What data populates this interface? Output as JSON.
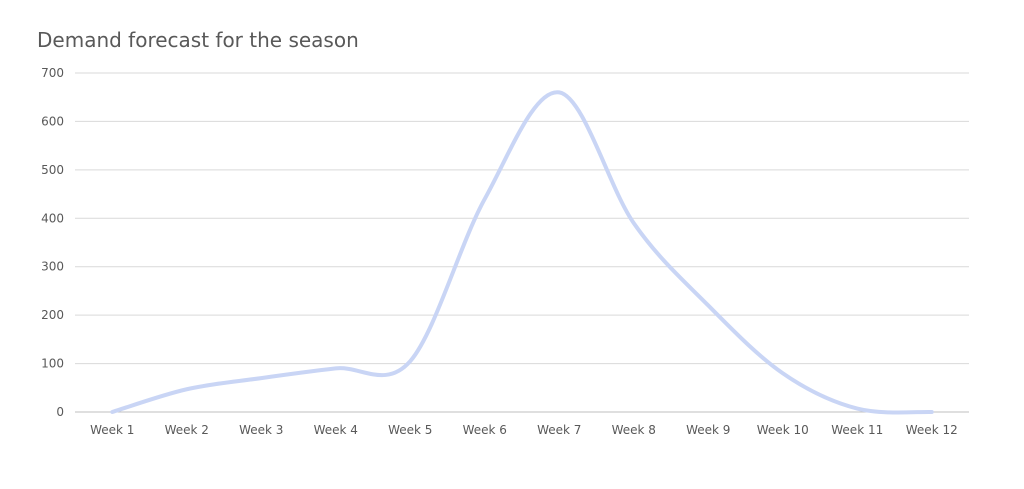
{
  "chart_data": {
    "type": "line",
    "title": "Demand forecast for the season",
    "xlabel": "",
    "ylabel": "",
    "categories": [
      "Week 1",
      "Week 2",
      "Week 3",
      "Week 4",
      "Week 5",
      "Week 6",
      "Week 7",
      "Week 8",
      "Week 9",
      "Week 10",
      "Week 11",
      "Week 12"
    ],
    "series": [
      {
        "values": [
          0,
          47,
          70,
          90,
          105,
          440,
          660,
          390,
          220,
          80,
          7,
          0
        ],
        "color": "#c9d5f5"
      }
    ],
    "ylim": [
      0,
      700
    ],
    "yticks": [
      0,
      100,
      200,
      300,
      400,
      500,
      600,
      700
    ],
    "grid": true,
    "legend": "none",
    "smooth": true
  }
}
